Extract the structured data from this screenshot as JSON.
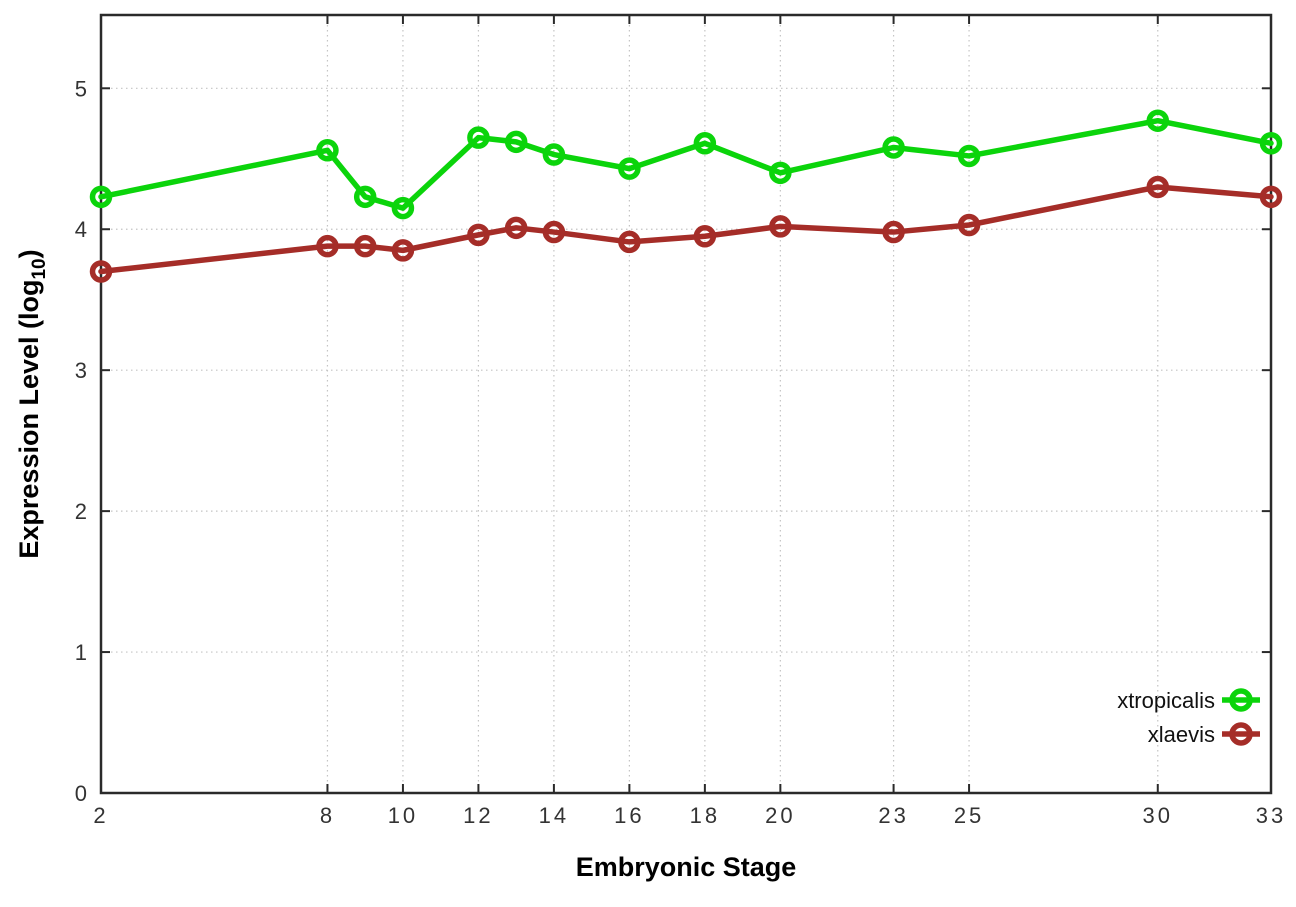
{
  "chart_data": {
    "type": "line",
    "title": "",
    "xlabel": "Embryonic Stage",
    "ylabel": "Expression Level (log10)",
    "ylabel_parts": {
      "pre": "Expression Level (log",
      "sub": "10",
      "post": ")"
    },
    "x": [
      2,
      8,
      9,
      10,
      12,
      13,
      14,
      16,
      18,
      20,
      23,
      25,
      30,
      33
    ],
    "series": [
      {
        "name": "xtropicalis",
        "color": "#0bd40b",
        "values": [
          4.23,
          4.56,
          4.23,
          4.15,
          4.65,
          4.62,
          4.53,
          4.43,
          4.61,
          4.4,
          4.58,
          4.52,
          4.77,
          4.61
        ]
      },
      {
        "name": "xlaevis",
        "color": "#a52d28",
        "values": [
          3.7,
          3.88,
          3.88,
          3.85,
          3.96,
          4.01,
          3.98,
          3.91,
          3.95,
          4.02,
          3.98,
          4.03,
          4.3,
          4.23
        ]
      }
    ],
    "x_ticks": [
      2,
      8,
      10,
      12,
      14,
      16,
      18,
      20,
      23,
      25,
      30,
      33
    ],
    "x_tick_labels": [
      "2",
      "8",
      "10",
      "12",
      "14",
      "16",
      "18",
      "20",
      "23",
      "25",
      "30",
      "33"
    ],
    "y_ticks": [
      0,
      1,
      2,
      3,
      4,
      5
    ],
    "y_tick_labels": [
      "0",
      "1",
      "2",
      "3",
      "4",
      "5"
    ],
    "xlim": [
      2,
      33
    ],
    "ylim": [
      0,
      5.52
    ],
    "grid": true,
    "legend_position": "inside-right"
  }
}
